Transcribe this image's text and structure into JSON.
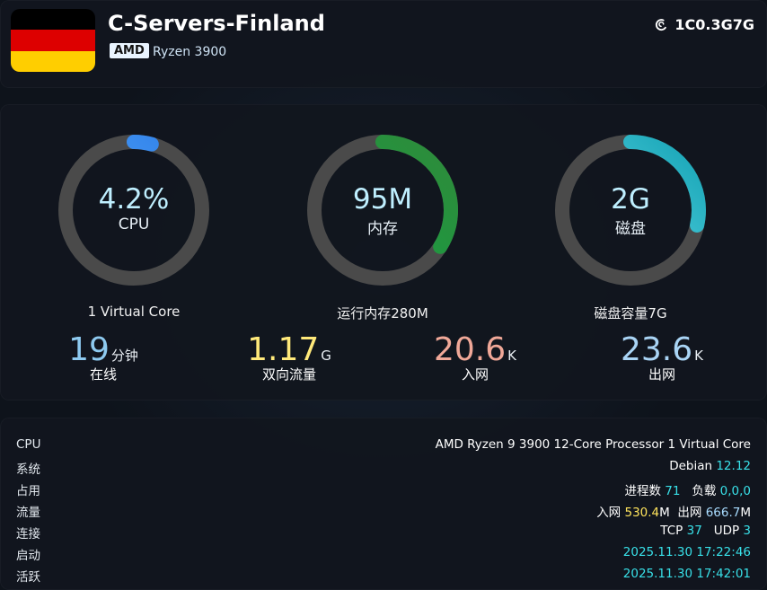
{
  "header": {
    "server_name": "C-Servers-Finland",
    "cpu_brand": "AMD",
    "cpu_model": "Ryzen  3900",
    "plan": "1C0.3G7G",
    "plan_icon": "debian-swirl-icon",
    "flag": {
      "name": "germany-flag",
      "colors": [
        "#000000",
        "#dd0000",
        "#ffce00"
      ]
    }
  },
  "gauges": [
    {
      "value": "4.2%",
      "label": "CPU",
      "sub": "1 Virtual Core",
      "fraction": 0.042,
      "color_start": "#5ab0ff",
      "color_end": "#2f7fe8"
    },
    {
      "value": "95M",
      "label": "内存",
      "sub": "运行内存280M",
      "fraction": 0.34,
      "color_start": "#11a346",
      "color_end": "#2f8a3a"
    },
    {
      "value": "2G",
      "label": "磁盘",
      "sub": "磁盘容量7G",
      "fraction": 0.2857,
      "color_start": "#6fe6f2",
      "color_end": "#16a3b5"
    }
  ],
  "stats": [
    {
      "num": "19",
      "unit": "分钟",
      "label": "在线",
      "color": "#8ecaf0"
    },
    {
      "num": "1.17",
      "unit": "G",
      "label": "双向流量",
      "color": "#ffe97a"
    },
    {
      "num": "20.6",
      "unit": "K",
      "label": "入网",
      "color": "#f0a898"
    },
    {
      "num": "23.6",
      "unit": "K",
      "label": "出网",
      "color": "#a9d4f5"
    }
  ],
  "info": {
    "cpu": {
      "label": "CPU",
      "value": "AMD Ryzen 9 3900 12-Core Processor 1 Virtual Core"
    },
    "system": {
      "label": "系统",
      "os": "Debian",
      "version": "12.12"
    },
    "usage": {
      "label": "占用",
      "proc_label": "进程数",
      "proc": "71",
      "load_label": "负载",
      "load": "0,0,0"
    },
    "traffic": {
      "label": "流量",
      "in_label": "入网",
      "in_value": "530.4",
      "in_unit": "M",
      "out_label": "出网",
      "out_value": "666.7",
      "out_unit": "M"
    },
    "connections": {
      "label": "连接",
      "tcp_label": "TCP",
      "tcp": "37",
      "udp_label": "UDP",
      "udp": "3"
    },
    "boot": {
      "label": "启动",
      "value": "2025.11.30 17:22:46"
    },
    "active": {
      "label": "活跃",
      "value": "2025.11.30 17:42:01"
    }
  }
}
